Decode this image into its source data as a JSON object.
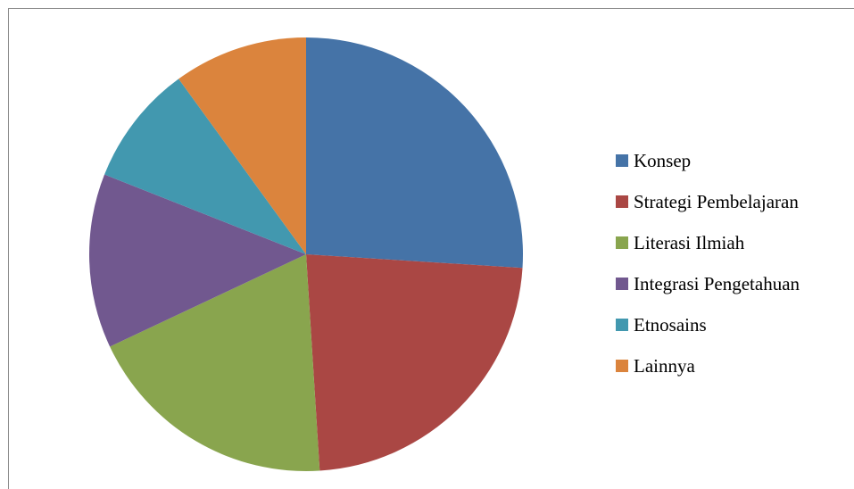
{
  "chart_data": {
    "type": "pie",
    "title": "",
    "categories": [
      "Konsep",
      "Strategi Pembelajaran",
      "Literasi Ilmiah",
      "Integrasi Pengetahuan",
      "Etnosains",
      "Lainnya"
    ],
    "values": [
      26,
      23,
      19,
      13,
      9,
      10
    ],
    "unit": "%",
    "colors": [
      "#4573a7",
      "#aa4744",
      "#89a54e",
      "#71588f",
      "#4298af",
      "#db843d"
    ],
    "start_angle_deg": 0,
    "direction": "clockwise",
    "legend_position": "right"
  }
}
